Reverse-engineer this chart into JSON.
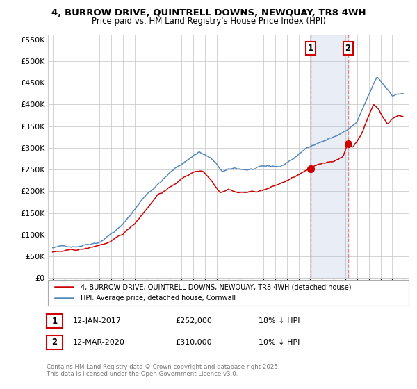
{
  "title1": "4, BURROW DRIVE, QUINTRELL DOWNS, NEWQUAY, TR8 4WH",
  "title2": "Price paid vs. HM Land Registry's House Price Index (HPI)",
  "legend_line1": "4, BURROW DRIVE, QUINTRELL DOWNS, NEWQUAY, TR8 4WH (detached house)",
  "legend_line2": "HPI: Average price, detached house, Cornwall",
  "annotation1_date": "12-JAN-2017",
  "annotation1_price": "£252,000",
  "annotation1_hpi": "18% ↓ HPI",
  "annotation2_date": "12-MAR-2020",
  "annotation2_price": "£310,000",
  "annotation2_hpi": "10% ↓ HPI",
  "copyright_text": "Contains HM Land Registry data © Crown copyright and database right 2025.\nThis data is licensed under the Open Government Licence v3.0.",
  "red_color": "#cc0000",
  "blue_color": "#5588bb",
  "blue_fill_color": "#aabbdd",
  "annotation_vline_color": "#dd8888",
  "annotation_box_color": "#cc0000",
  "background_color": "#ffffff",
  "grid_color": "#cccccc",
  "ylim_min": 0,
  "ylim_max": 560000,
  "sale1_year": 2017.04,
  "sale2_year": 2020.21,
  "sale1_price": 252000,
  "sale2_price": 310000
}
